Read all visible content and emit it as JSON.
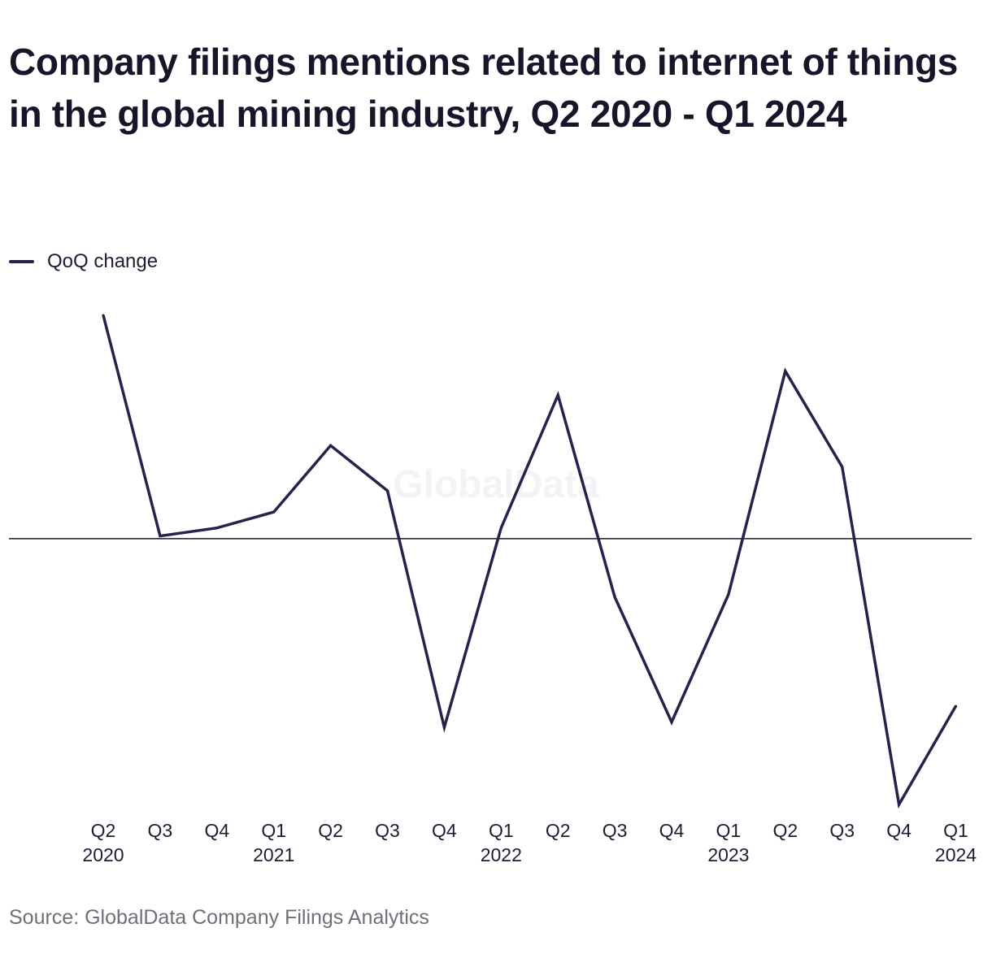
{
  "title": "Company filings mentions related to internet of things in the global mining industry, Q2 2020 - Q1 2024",
  "watermark": "GlobalData",
  "source": "Source: GlobalData Company Filings Analytics",
  "colors": {
    "series": "#2c1f4a",
    "zero_line": "#16152a",
    "title": "#16152a",
    "source": "#6f6f78"
  },
  "chart_data": {
    "type": "line",
    "title": "Company filings mentions related to internet of things in the global mining industry, Q2 2020 - Q1 2024",
    "xlabel": "",
    "ylabel": "",
    "y_axis_labels": "hidden",
    "grid": false,
    "zero_line": true,
    "legend_position": "top-left",
    "ylim": [
      -100,
      84
    ],
    "categories": [
      {
        "quarter": "Q2",
        "year": "2020"
      },
      {
        "quarter": "Q3",
        "year": ""
      },
      {
        "quarter": "Q4",
        "year": ""
      },
      {
        "quarter": "Q1",
        "year": "2021"
      },
      {
        "quarter": "Q2",
        "year": ""
      },
      {
        "quarter": "Q3",
        "year": ""
      },
      {
        "quarter": "Q4",
        "year": ""
      },
      {
        "quarter": "Q1",
        "year": "2022"
      },
      {
        "quarter": "Q2",
        "year": ""
      },
      {
        "quarter": "Q3",
        "year": ""
      },
      {
        "quarter": "Q4",
        "year": ""
      },
      {
        "quarter": "Q1",
        "year": "2023"
      },
      {
        "quarter": "Q2",
        "year": ""
      },
      {
        "quarter": "Q3",
        "year": ""
      },
      {
        "quarter": "Q4",
        "year": ""
      },
      {
        "quarter": "Q1",
        "year": "2024"
      }
    ],
    "series": [
      {
        "name": "QoQ change",
        "values": [
          84,
          1,
          4,
          10,
          35,
          18,
          -71,
          4,
          54,
          -22,
          -69,
          -21,
          63,
          27,
          -100,
          -63
        ]
      }
    ]
  }
}
